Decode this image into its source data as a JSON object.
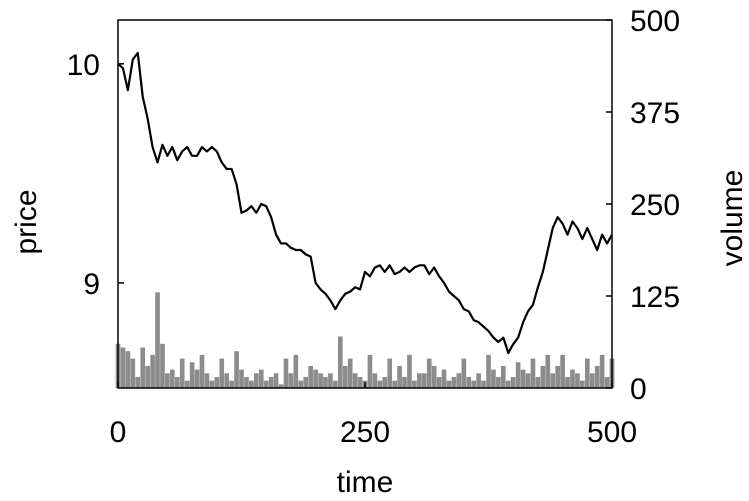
{
  "chart_data": {
    "type": "line",
    "xlabel": "time",
    "ylabel_left": "price",
    "ylabel_right": "volume",
    "xlim": [
      0,
      500
    ],
    "ylim_left": [
      8.52,
      10.2
    ],
    "ylim_right": [
      0,
      500
    ],
    "x_ticks": [
      0,
      250,
      500
    ],
    "x_tick_labels": [
      "0",
      "250",
      "500"
    ],
    "left_ticks": [
      9,
      10
    ],
    "left_tick_labels": [
      "9",
      "10"
    ],
    "right_ticks": [
      0,
      125,
      250,
      375,
      500
    ],
    "right_tick_labels": [
      "0",
      "125",
      "250",
      "375",
      "500"
    ],
    "grid": false,
    "colors": {
      "price": "#000000",
      "volume": "#8c8c8c",
      "axes": "#000000"
    },
    "series": [
      {
        "name": "price",
        "axis": "left",
        "type": "line",
        "x": [
          0,
          5,
          10,
          15,
          20,
          25,
          30,
          35,
          40,
          45,
          50,
          55,
          60,
          65,
          70,
          75,
          80,
          85,
          90,
          95,
          100,
          105,
          110,
          115,
          120,
          125,
          130,
          135,
          140,
          145,
          150,
          155,
          160,
          165,
          170,
          175,
          180,
          185,
          190,
          195,
          200,
          205,
          210,
          215,
          220,
          225,
          230,
          235,
          240,
          245,
          250,
          255,
          260,
          265,
          270,
          275,
          280,
          285,
          290,
          295,
          300,
          305,
          310,
          315,
          320,
          325,
          330,
          335,
          340,
          345,
          350,
          355,
          360,
          365,
          370,
          375,
          380,
          385,
          390,
          395,
          400,
          405,
          410,
          415,
          420,
          425,
          430,
          435,
          440,
          445,
          450,
          455,
          460,
          465,
          470,
          475,
          480,
          485,
          490,
          495,
          500
        ],
        "values": [
          10.0,
          9.98,
          9.88,
          10.02,
          10.05,
          9.85,
          9.75,
          9.62,
          9.55,
          9.63,
          9.58,
          9.62,
          9.56,
          9.6,
          9.62,
          9.58,
          9.58,
          9.62,
          9.6,
          9.62,
          9.6,
          9.55,
          9.52,
          9.52,
          9.45,
          9.32,
          9.33,
          9.35,
          9.32,
          9.36,
          9.35,
          9.3,
          9.22,
          9.18,
          9.18,
          9.16,
          9.15,
          9.15,
          9.13,
          9.12,
          9.0,
          8.97,
          8.95,
          8.92,
          8.88,
          8.92,
          8.95,
          8.96,
          8.98,
          8.97,
          9.05,
          9.03,
          9.07,
          9.08,
          9.05,
          9.08,
          9.04,
          9.05,
          9.07,
          9.05,
          9.07,
          9.08,
          9.08,
          9.04,
          9.07,
          9.03,
          9.0,
          8.96,
          8.94,
          8.92,
          8.88,
          8.87,
          8.83,
          8.82,
          8.8,
          8.78,
          8.75,
          8.73,
          8.75,
          8.68,
          8.72,
          8.75,
          8.82,
          8.87,
          8.9,
          8.98,
          9.05,
          9.15,
          9.25,
          9.3,
          9.27,
          9.22,
          9.28,
          9.25,
          9.2,
          9.25,
          9.2,
          9.15,
          9.22,
          9.18,
          9.22
        ]
      },
      {
        "name": "volume",
        "axis": "right",
        "type": "bar",
        "x": [
          0,
          5,
          10,
          15,
          20,
          25,
          30,
          35,
          40,
          45,
          50,
          55,
          60,
          65,
          70,
          75,
          80,
          85,
          90,
          95,
          100,
          105,
          110,
          115,
          120,
          125,
          130,
          135,
          140,
          145,
          150,
          155,
          160,
          165,
          170,
          175,
          180,
          185,
          190,
          195,
          200,
          205,
          210,
          215,
          220,
          225,
          230,
          235,
          240,
          245,
          250,
          255,
          260,
          265,
          270,
          275,
          280,
          285,
          290,
          295,
          300,
          305,
          310,
          315,
          320,
          325,
          330,
          335,
          340,
          345,
          350,
          355,
          360,
          365,
          370,
          375,
          380,
          385,
          390,
          395,
          400,
          405,
          410,
          415,
          420,
          425,
          430,
          435,
          440,
          445,
          450,
          455,
          460,
          465,
          470,
          475,
          480,
          485,
          490,
          495,
          500
        ],
        "values": [
          60,
          55,
          50,
          40,
          15,
          55,
          30,
          45,
          130,
          60,
          20,
          25,
          15,
          40,
          10,
          35,
          25,
          45,
          20,
          10,
          15,
          40,
          20,
          10,
          50,
          25,
          15,
          10,
          20,
          25,
          10,
          15,
          20,
          5,
          40,
          20,
          45,
          10,
          15,
          30,
          25,
          20,
          15,
          20,
          10,
          70,
          30,
          40,
          20,
          15,
          10,
          45,
          20,
          10,
          15,
          40,
          10,
          30,
          15,
          45,
          10,
          20,
          20,
          40,
          30,
          15,
          25,
          10,
          15,
          20,
          40,
          15,
          10,
          20,
          10,
          45,
          25,
          15,
          30,
          10,
          15,
          35,
          25,
          20,
          40,
          15,
          30,
          45,
          20,
          30,
          45,
          15,
          25,
          20,
          10,
          40,
          20,
          30,
          45,
          15,
          40
        ]
      }
    ]
  }
}
